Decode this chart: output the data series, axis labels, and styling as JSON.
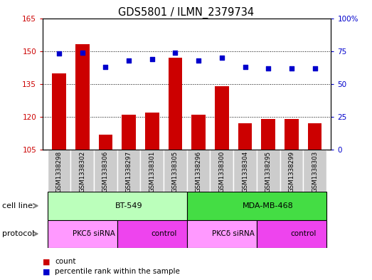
{
  "title": "GDS5801 / ILMN_2379734",
  "samples": [
    "GSM1338298",
    "GSM1338302",
    "GSM1338306",
    "GSM1338297",
    "GSM1338301",
    "GSM1338305",
    "GSM1338296",
    "GSM1338300",
    "GSM1338304",
    "GSM1338295",
    "GSM1338299",
    "GSM1338303"
  ],
  "counts": [
    140,
    153,
    112,
    121,
    122,
    147,
    121,
    134,
    117,
    119,
    119,
    117
  ],
  "percentiles": [
    73,
    74,
    63,
    68,
    69,
    74,
    68,
    70,
    63,
    62,
    62,
    62
  ],
  "ylim_left": [
    105,
    165
  ],
  "ylim_right": [
    0,
    100
  ],
  "yticks_left": [
    105,
    120,
    135,
    150,
    165
  ],
  "yticks_right": [
    0,
    25,
    50,
    75,
    100
  ],
  "ytick_labels_left": [
    "105",
    "120",
    "135",
    "150",
    "165"
  ],
  "ytick_labels_right": [
    "0",
    "25",
    "50",
    "75",
    "100%"
  ],
  "bar_color": "#cc0000",
  "dot_color": "#0000cc",
  "cell_line_groups": [
    {
      "label": "BT-549",
      "start": 0,
      "end": 6,
      "color": "#bbffbb"
    },
    {
      "label": "MDA-MB-468",
      "start": 6,
      "end": 12,
      "color": "#44dd44"
    }
  ],
  "protocol_groups": [
    {
      "label": "PKCδ siRNA",
      "start": 0,
      "end": 3,
      "color": "#ff99ff"
    },
    {
      "label": "control",
      "start": 3,
      "end": 6,
      "color": "#ee44ee"
    },
    {
      "label": "PKCδ siRNA",
      "start": 6,
      "end": 9,
      "color": "#ff99ff"
    },
    {
      "label": "control",
      "start": 9,
      "end": 12,
      "color": "#ee44ee"
    }
  ],
  "legend_count_label": "count",
  "legend_percentile_label": "percentile rank within the sample",
  "cell_line_label": "cell line",
  "protocol_label": "protocol",
  "sample_bg_color": "#cccccc"
}
